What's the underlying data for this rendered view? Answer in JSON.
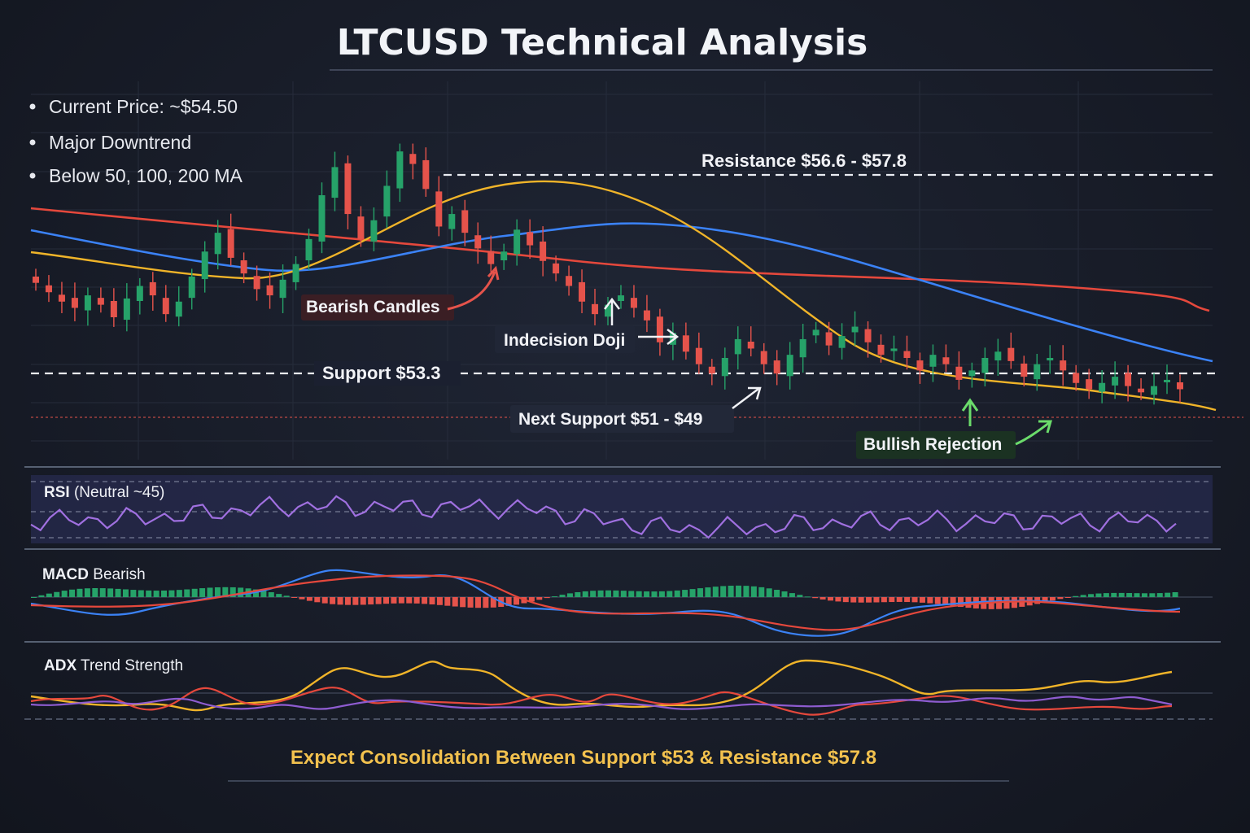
{
  "title": "LTCUSD Technical Analysis",
  "bullets": [
    "Current Price: ~$54.50",
    "Major Downtrend",
    "Below 50, 100, 200 MA"
  ],
  "annotations": {
    "resistance": "Resistance $56.6 - $57.8",
    "support": "Support $53.3",
    "next_support": "Next Support $51 - $49",
    "bearish": "Bearish Candles",
    "doji": "Indecision Doji",
    "bullish": "Bullish Rejection"
  },
  "panels": {
    "rsi_bold": "RSI",
    "rsi_rest": " (Neutral ~45)",
    "macd_bold": "MACD",
    "macd_rest": " Bearish",
    "adx_bold": "ADX",
    "adx_rest": " Trend Strength"
  },
  "footer": "Expect Consolidation Between Support $53 & Resistance $57.8",
  "colors": {
    "bull": "#26a269",
    "bear": "#e5534b",
    "ma_fast": "#f0b429",
    "ma_mid": "#3b82f6",
    "ma_slow": "#e5483c",
    "rsi": "#a070e0",
    "annotation_arrow_red": "#e5534b",
    "annotation_arrow_green": "#6bdc6b"
  },
  "chart_data": {
    "type": "candlestick",
    "levels": {
      "resistance": [
        56.6,
        57.8
      ],
      "support": 53.3,
      "next_support": [
        51,
        49
      ]
    },
    "ylim": [
      50.4,
      60.8
    ],
    "closes": [
      55.4,
      55.1,
      54.8,
      54.6,
      55.0,
      54.7,
      54.3,
      54.9,
      55.3,
      55.0,
      54.4,
      54.8,
      55.6,
      56.4,
      57.0,
      56.2,
      55.7,
      55.2,
      55.0,
      55.5,
      56.0,
      56.8,
      58.2,
      59.1,
      57.6,
      56.8,
      57.4,
      58.5,
      59.6,
      59.2,
      58.4,
      57.2,
      57.6,
      57.0,
      56.5,
      56.0,
      56.4,
      57.1,
      56.6,
      56.1,
      55.7,
      55.3,
      54.8,
      54.4,
      54.7,
      55.0,
      54.6,
      54.2,
      53.5,
      53.8,
      53.2,
      52.8,
      52.5,
      53.0,
      53.6,
      53.3,
      52.8,
      52.5,
      53.1,
      53.6,
      53.9,
      53.4,
      53.7,
      54.0,
      53.5,
      53.1,
      53.3,
      53.0,
      52.6,
      53.1,
      52.8,
      52.3,
      52.6,
      53.0,
      53.2,
      52.9,
      52.4,
      52.8,
      53.0,
      52.6,
      52.2,
      52.0,
      52.2,
      52.4,
      52.1,
      51.9,
      52.1,
      52.3,
      52.0
    ]
  }
}
